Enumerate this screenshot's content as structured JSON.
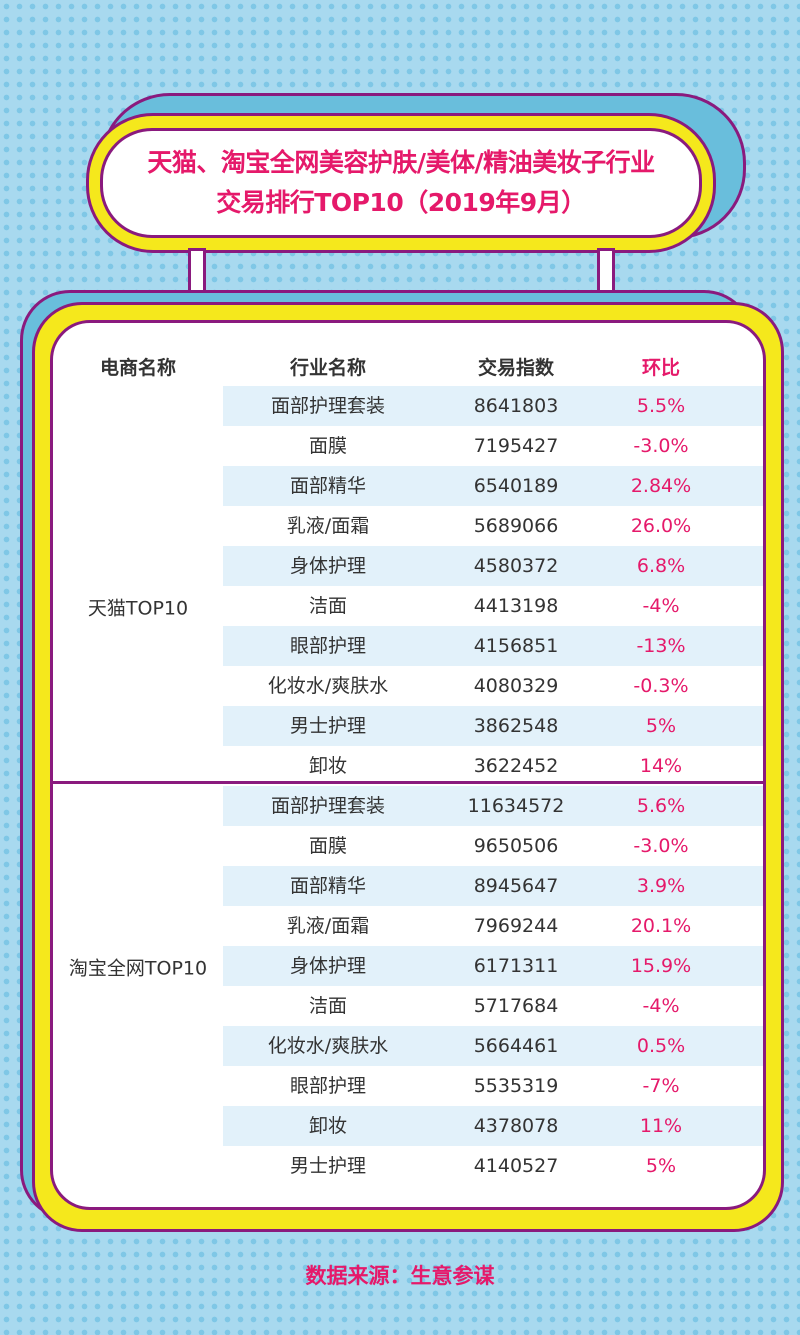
{
  "title": {
    "line1": "天猫、淘宝全网美容护肤/美体/精油美妆子行业",
    "line2": "交易排行TOP10（2019年9月）"
  },
  "table": {
    "headers": [
      "电商名称",
      "行业名称",
      "交易指数",
      "环比"
    ],
    "groups": [
      {
        "name": "天猫TOP10",
        "rows": [
          [
            "面部护理套装",
            "8641803",
            "5.5%"
          ],
          [
            "面膜",
            "7195427",
            "-3.0%"
          ],
          [
            "面部精华",
            "6540189",
            "2.84%"
          ],
          [
            "乳液/面霜",
            "5689066",
            "26.0%"
          ],
          [
            "身体护理",
            "4580372",
            "6.8%"
          ],
          [
            "洁面",
            "4413198",
            "-4%"
          ],
          [
            "眼部护理",
            "4156851",
            "-13%"
          ],
          [
            "化妆水/爽肤水",
            "4080329",
            "-0.3%"
          ],
          [
            "男士护理",
            "3862548",
            "5%"
          ],
          [
            "卸妆",
            "3622452",
            "14%"
          ]
        ]
      },
      {
        "name": "淘宝全网TOP10",
        "rows": [
          [
            "面部护理套装",
            "11634572",
            "5.6%"
          ],
          [
            "面膜",
            "9650506",
            "-3.0%"
          ],
          [
            "面部精华",
            "8945647",
            "3.9%"
          ],
          [
            "乳液/面霜",
            "7969244",
            "20.1%"
          ],
          [
            "身体护理",
            "6171311",
            "15.9%"
          ],
          [
            "洁面",
            "5717684",
            "-4%"
          ],
          [
            "化妆水/爽肤水",
            "5664461",
            "0.5%"
          ],
          [
            "眼部护理",
            "5535319",
            "-7%"
          ],
          [
            "卸妆",
            "4378078",
            "11%"
          ],
          [
            "男士护理",
            "4140527",
            "5%"
          ]
        ]
      }
    ]
  },
  "footer": "数据来源：生意参谋",
  "colors": {
    "accent": "#e5196a",
    "border": "#8a1a7e",
    "yellow": "#f5e81c",
    "stripe": "#e2f1fa"
  }
}
